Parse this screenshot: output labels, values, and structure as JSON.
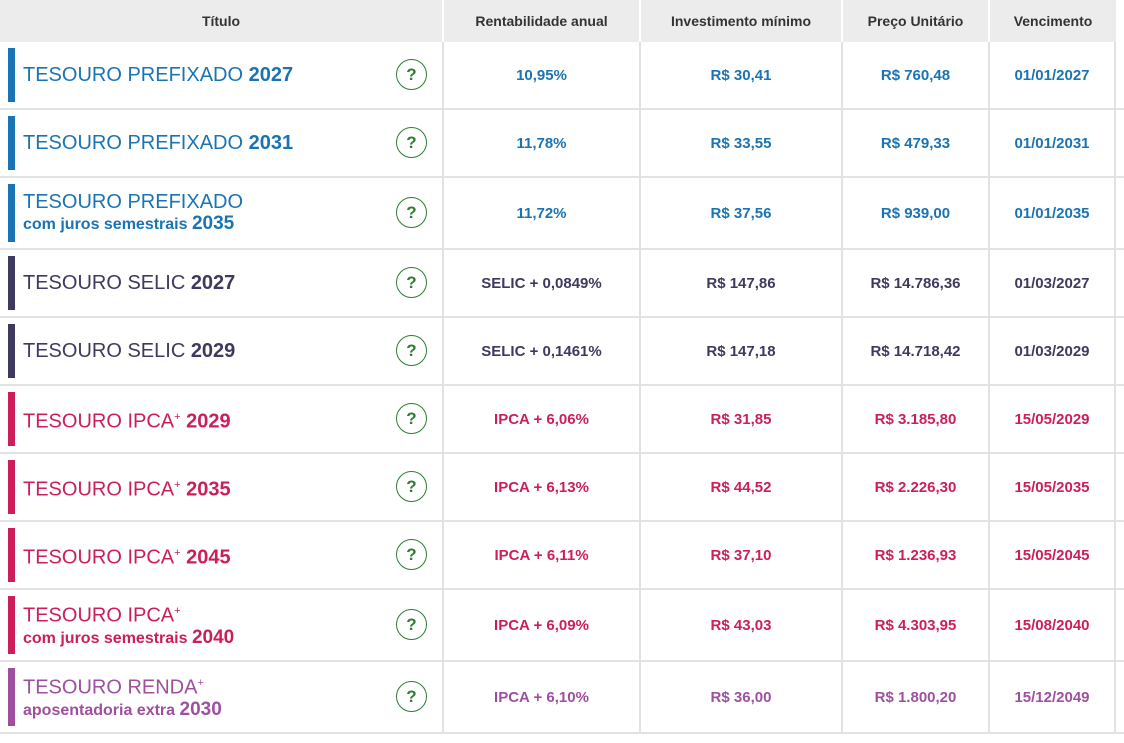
{
  "headers": {
    "title": "Título",
    "rent": "Rentabilidade anual",
    "inv": "Investimento mínimo",
    "price": "Preço Unitário",
    "venc": "Vencimento"
  },
  "help_symbol": "?",
  "colors": {
    "prefixado": "#1a74b3",
    "selic": "#3d3a5e",
    "ipca": "#cc1e5a",
    "renda": "#9e4f9e"
  },
  "rows": [
    {
      "line1": "TESOURO PREFIXADO ",
      "year": "2027",
      "sup": "",
      "line2": "",
      "rent": "10,95%",
      "inv": "R$ 30,41",
      "price": "R$ 760,48",
      "venc": "01/01/2027"
    },
    {
      "line1": "TESOURO PREFIXADO ",
      "year": "2031",
      "sup": "",
      "line2": "",
      "rent": "11,78%",
      "inv": "R$ 33,55",
      "price": "R$ 479,33",
      "venc": "01/01/2031"
    },
    {
      "line1": "TESOURO PREFIXADO",
      "year": "2035",
      "sup": "",
      "line2": "com juros semestrais ",
      "rent": "11,72%",
      "inv": "R$ 37,56",
      "price": "R$ 939,00",
      "venc": "01/01/2035"
    },
    {
      "line1": "TESOURO SELIC ",
      "year": "2027",
      "sup": "",
      "line2": "",
      "rent": "SELIC + 0,0849%",
      "inv": "R$ 147,86",
      "price": "R$ 14.786,36",
      "venc": "01/03/2027"
    },
    {
      "line1": "TESOURO SELIC ",
      "year": "2029",
      "sup": "",
      "line2": "",
      "rent": "SELIC + 0,1461%",
      "inv": "R$ 147,18",
      "price": "R$ 14.718,42",
      "venc": "01/03/2029"
    },
    {
      "line1": "TESOURO IPCA",
      "year": "2029",
      "sup": "+",
      "line2": "",
      "rent": "IPCA + 6,06%",
      "inv": "R$ 31,85",
      "price": "R$ 3.185,80",
      "venc": "15/05/2029"
    },
    {
      "line1": "TESOURO IPCA",
      "year": "2035",
      "sup": "+",
      "line2": "",
      "rent": "IPCA + 6,13%",
      "inv": "R$ 44,52",
      "price": "R$ 2.226,30",
      "venc": "15/05/2035"
    },
    {
      "line1": "TESOURO IPCA",
      "year": "2045",
      "sup": "+",
      "line2": "",
      "rent": "IPCA + 6,11%",
      "inv": "R$ 37,10",
      "price": "R$ 1.236,93",
      "venc": "15/05/2045"
    },
    {
      "line1": "TESOURO IPCA",
      "year": "2040",
      "sup": "+",
      "line2": "com juros semestrais ",
      "rent": "IPCA + 6,09%",
      "inv": "R$ 43,03",
      "price": "R$ 4.303,95",
      "venc": "15/08/2040"
    },
    {
      "line1": "TESOURO RENDA",
      "year": "2030",
      "sup": "+",
      "line2": "aposentadoria extra ",
      "rent": "IPCA + 6,10%",
      "inv": "R$ 36,00",
      "price": "R$ 1.800,20",
      "venc": "15/12/2049"
    }
  ]
}
